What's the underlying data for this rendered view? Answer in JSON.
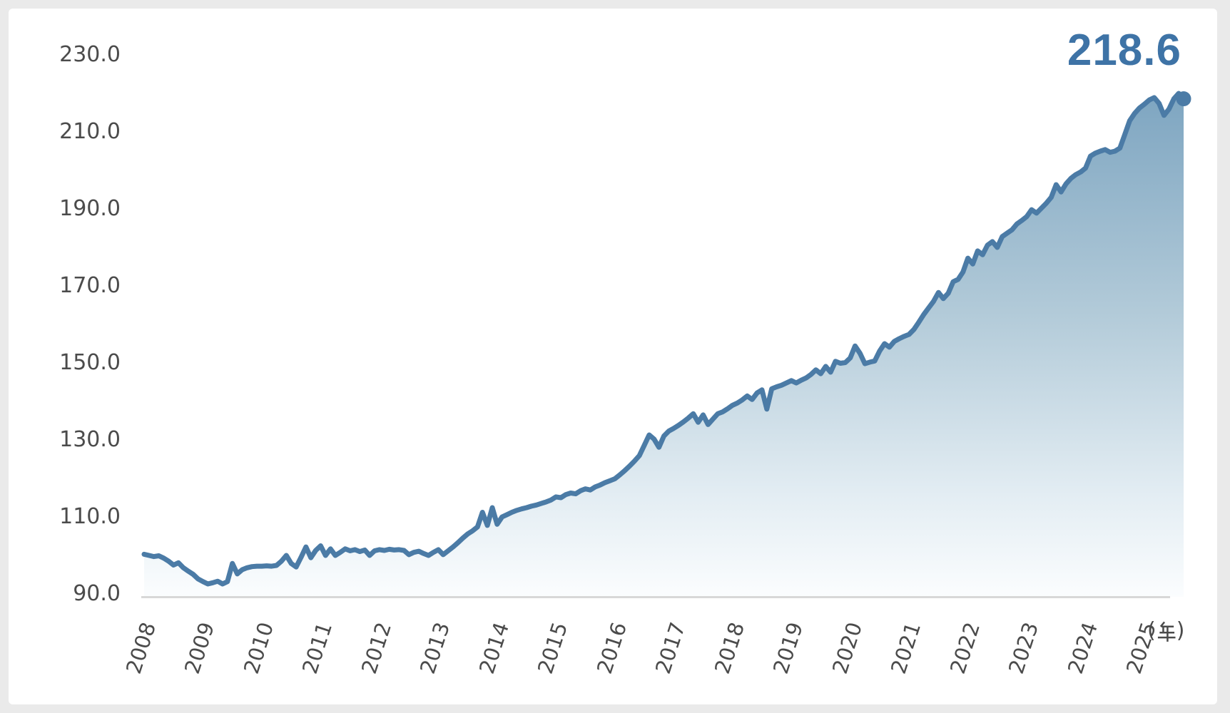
{
  "chart_data": {
    "type": "area",
    "title": "",
    "end_label": "218.6",
    "x_axis_unit": "(年)",
    "x_axis_unit_parts": {
      "open": "(",
      "kanji": "年",
      "close": ")"
    },
    "x_ticks": [
      "2008",
      "2009",
      "2010",
      "2011",
      "2012",
      "2013",
      "2014",
      "2015",
      "2016",
      "2017",
      "2018",
      "2019",
      "2020",
      "2021",
      "2022",
      "2023",
      "2024",
      "2025"
    ],
    "y_ticks": [
      "230.0",
      "210.0",
      "190.0",
      "170.0",
      "150.0",
      "130.0",
      "110.0",
      "90.0"
    ],
    "ylim": [
      90,
      230
    ],
    "grid": false,
    "legend": "none",
    "frequency_note": "monthly points from 2008 to late 2025",
    "series": [
      {
        "values": [
          100.3,
          100.0,
          99.7,
          99.9,
          99.3,
          98.5,
          97.5,
          98.1,
          96.8,
          95.9,
          95.1,
          93.9,
          93.2,
          92.6,
          92.9,
          93.3,
          92.6,
          93.2,
          97.9,
          95.2,
          96.3,
          96.8,
          97.1,
          97.2,
          97.2,
          97.3,
          97.2,
          97.4,
          98.5,
          100.0,
          97.9,
          97.0,
          99.5,
          102.2,
          99.4,
          101.3,
          102.5,
          100.0,
          101.7,
          100.0,
          100.8,
          101.7,
          101.2,
          101.5,
          101.0,
          101.4,
          100.0,
          101.2,
          101.5,
          101.3,
          101.6,
          101.4,
          101.5,
          101.3,
          100.2,
          100.8,
          101.1,
          100.5,
          100.0,
          100.8,
          101.5,
          100.2,
          101.2,
          102.2,
          103.3,
          104.5,
          105.6,
          106.4,
          107.4,
          111.2,
          107.8,
          112.4,
          108.1,
          110.0,
          110.6,
          111.2,
          111.7,
          112.1,
          112.4,
          112.8,
          113.1,
          113.5,
          113.9,
          114.4,
          115.2,
          115.0,
          115.8,
          116.2,
          116.0,
          116.8,
          117.3,
          117.0,
          117.8,
          118.3,
          118.9,
          119.4,
          119.9,
          120.9,
          122.0,
          123.2,
          124.5,
          125.9,
          128.6,
          131.3,
          130.2,
          128.1,
          131.0,
          132.3,
          133.0,
          133.8,
          134.7,
          135.7,
          136.8,
          134.6,
          136.5,
          134.0,
          135.4,
          136.8,
          137.3,
          138.1,
          139.0,
          139.6,
          140.4,
          141.4,
          140.5,
          142.2,
          143.0,
          138.0,
          143.3,
          143.8,
          144.2,
          144.8,
          145.4,
          144.8,
          145.5,
          146.1,
          147.0,
          148.2,
          147.2,
          149.1,
          147.6,
          150.4,
          149.9,
          150.1,
          151.3,
          154.4,
          152.5,
          149.8,
          150.2,
          150.5,
          153.1,
          155.0,
          154.1,
          155.6,
          156.3,
          156.9,
          157.4,
          158.7,
          160.6,
          162.6,
          164.3,
          166.0,
          168.3,
          166.7,
          168.1,
          171.1,
          171.7,
          173.6,
          177.2,
          175.7,
          179.1,
          178.1,
          180.6,
          181.5,
          180.0,
          182.8,
          183.7,
          184.6,
          186.1,
          187.0,
          188.0,
          189.8,
          188.9,
          190.2,
          191.5,
          193.0,
          196.3,
          194.4,
          196.5,
          197.9,
          198.9,
          199.6,
          200.6,
          203.7,
          204.5,
          205.0,
          205.4,
          204.7,
          205.0,
          205.8,
          209.3,
          212.9,
          214.8,
          216.2,
          217.2,
          218.3,
          218.9,
          217.4,
          214.3,
          215.9,
          218.6,
          220.0,
          218.6
        ]
      }
    ],
    "colors": {
      "page_bg": "#eaeaea",
      "card_bg": "#ffffff",
      "line": "#4b7ba6",
      "marker": "#4b7ba6",
      "end_label": "#3e73a6",
      "tick_label": "#4b4b4b",
      "axis_line": "#d8d8d8",
      "area_top": "#7ca4c0",
      "area_mid": "#b3cbd9",
      "area_low": "#e3edf3",
      "area_bottom": "#fbfdfe"
    }
  }
}
